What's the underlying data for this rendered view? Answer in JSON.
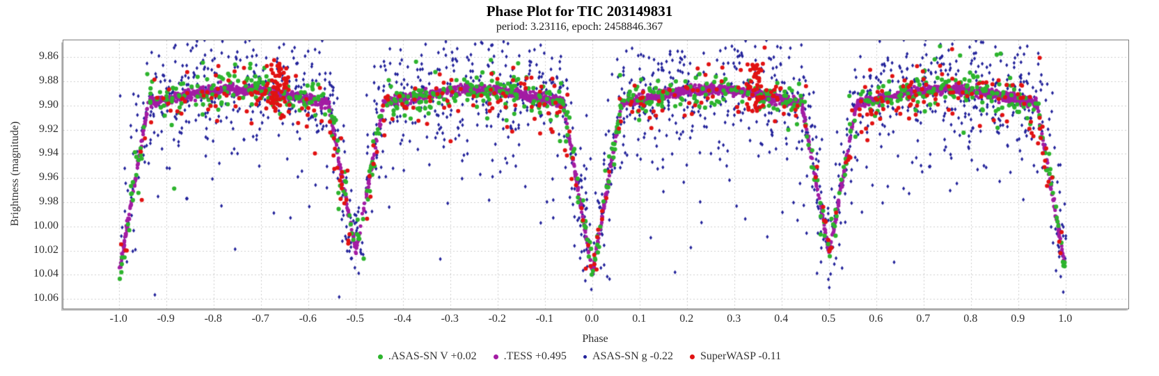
{
  "chart_data": {
    "type": "scatter",
    "title": "Phase Plot for TIC 203149831",
    "subtitle": "period: 3.23116, epoch: 2458846.367",
    "xlabel": "Phase",
    "ylabel": "Brightness (magnitude)",
    "xlim": [
      -1.118,
      1.132
    ],
    "ylim": [
      9.846,
      10.068
    ],
    "y_inverted": true,
    "grid": "dashed",
    "grid_color": "#cdcdcd",
    "x_ticks": [
      "-1.0",
      "-0.9",
      "-0.8",
      "-0.7",
      "-0.6",
      "-0.5",
      "-0.4",
      "-0.3",
      "-0.2",
      "-0.1",
      "0.0",
      "0.1",
      "0.2",
      "0.3",
      "0.4",
      "0.5",
      "0.6",
      "0.7",
      "0.8",
      "0.9",
      "1.0"
    ],
    "y_ticks": [
      "9.86",
      "9.88",
      "9.90",
      "9.92",
      "9.94",
      "9.96",
      "9.98",
      "10.00",
      "10.02",
      "10.04",
      "10.06"
    ],
    "phase_range": [
      -1.0,
      1.0
    ],
    "model": {
      "baseline_mag": 9.893,
      "ellipsoidal_amp": 0.0065,
      "primary_eclipse": {
        "phase": 0.0,
        "half_width": 0.062,
        "depth": 0.138,
        "min_mag": 10.038
      },
      "secondary_eclipse": {
        "phase": 0.5,
        "half_width": 0.058,
        "depth": 0.122,
        "min_mag": 10.022
      }
    },
    "legend_position": "bottom",
    "series": [
      {
        "name": "asassn-v",
        "label": ".ASAS-SN V +0.02",
        "color": "#2db42d",
        "marker": "circle",
        "radius": 3.1,
        "n": 760,
        "noise": [
          {
            "sigma": 0.0075,
            "frac": 0.93
          },
          {
            "sigma": 0.025,
            "frac": 0.07
          }
        ],
        "bias": 0.0,
        "seed": 11,
        "z": 3,
        "legend_marker_size": 7
      },
      {
        "name": "tess",
        "label": ".TESS +0.495",
        "color": "#a31ca3",
        "marker": "circle",
        "radius": 2.6,
        "n": 2600,
        "noise": [
          {
            "sigma": 0.002,
            "frac": 1.0
          }
        ],
        "bias": 0.0,
        "seed": 22,
        "z": 2,
        "legend_marker_size": 7
      },
      {
        "name": "asassn-g",
        "label": "ASAS-SN g -0.22",
        "color": "#22229a",
        "marker": "diamond",
        "radius": 2.7,
        "n": 1900,
        "noise": [
          {
            "sigma": 0.025,
            "frac": 0.7
          },
          {
            "sigma": 0.055,
            "frac": 0.3
          }
        ],
        "bias": -0.004,
        "seed": 33,
        "z": 1,
        "legend_marker_size": 5
      },
      {
        "name": "superwasp",
        "label": "SuperWASP -0.11",
        "color": "#e11212",
        "marker": "circle",
        "radius": 3.0,
        "n": 390,
        "noise": [
          {
            "sigma": 0.011,
            "frac": 0.92
          },
          {
            "sigma": 0.03,
            "frac": 0.08
          }
        ],
        "bias": 0.002,
        "seed": 44,
        "z": 4,
        "legend_marker_size": 7,
        "clusters": [
          {
            "phase": -0.665,
            "phase_sigma": 0.012,
            "mag_min": 9.862,
            "mag_max": 9.906,
            "n": 60
          },
          {
            "phase": 0.345,
            "phase_sigma": 0.01,
            "mag_min": 9.865,
            "mag_max": 9.905,
            "n": 45
          }
        ]
      }
    ]
  }
}
